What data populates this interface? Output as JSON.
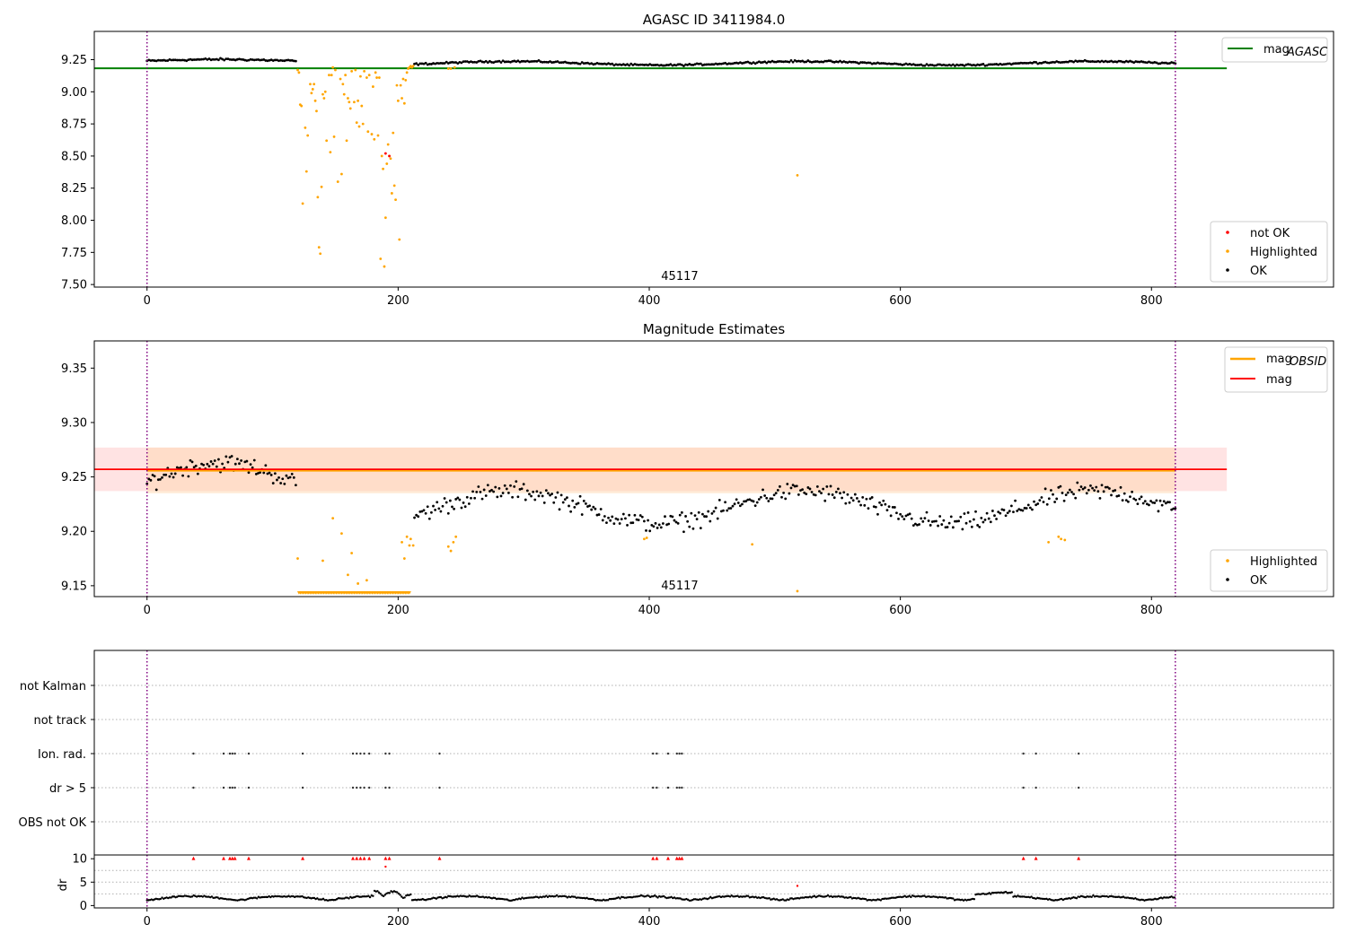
{
  "colors": {
    "ok": "#000000",
    "highlighted": "#FFA500",
    "not_ok": "#FF0000",
    "mag_agasc": "#008000",
    "mag_obsid": "#FFA500",
    "mag": "#FF0000",
    "obs_boundary": "#800080",
    "grid": "#b0b0b0",
    "band_fill": "#ffb0b0",
    "obsid_band_fill": "#ffd8b0"
  },
  "chart_data": [
    {
      "id": "panel-agasc",
      "type": "scatter",
      "title": "AGASC ID 3411984.0",
      "xlim": [
        -42,
        945
      ],
      "ylim": [
        7.48,
        9.47
      ],
      "xticks": [
        0,
        200,
        400,
        600,
        800
      ],
      "yticks": [
        7.5,
        7.75,
        8.0,
        8.25,
        8.5,
        8.75,
        9.0,
        9.25
      ],
      "ytick_labels": [
        "7.50",
        "7.75",
        "8.00",
        "8.25",
        "8.50",
        "8.75",
        "9.00",
        "9.25"
      ],
      "annotation": {
        "text": "45117",
        "x": 410
      },
      "obs_boundaries": [
        0,
        819
      ],
      "mag_agasc": {
        "value": 9.183,
        "xrange": [
          -42,
          860
        ]
      },
      "legend_lines": [
        {
          "label": "mag",
          "subscript": "AGASC",
          "color_key": "mag_agasc"
        }
      ],
      "legend_points": [
        "not OK",
        "Highlighted",
        "OK"
      ],
      "highlighted_points": [
        [
          120,
          9.17
        ],
        [
          121,
          9.15
        ],
        [
          122,
          8.9
        ],
        [
          123,
          8.89
        ],
        [
          124,
          8.13
        ],
        [
          126,
          8.72
        ],
        [
          127,
          8.38
        ],
        [
          128,
          8.66
        ],
        [
          130,
          9.06
        ],
        [
          131,
          8.99
        ],
        [
          132,
          9.02
        ],
        [
          133,
          9.06
        ],
        [
          134,
          8.93
        ],
        [
          135,
          8.85
        ],
        [
          136,
          8.18
        ],
        [
          137,
          7.79
        ],
        [
          138,
          7.74
        ],
        [
          139,
          8.26
        ],
        [
          140,
          8.98
        ],
        [
          141,
          8.95
        ],
        [
          142,
          9.0
        ],
        [
          143,
          8.62
        ],
        [
          145,
          9.13
        ],
        [
          146,
          8.53
        ],
        [
          147,
          9.13
        ],
        [
          148,
          9.19
        ],
        [
          149,
          8.65
        ],
        [
          150,
          9.17
        ],
        [
          152,
          8.3
        ],
        [
          154,
          9.1
        ],
        [
          155,
          8.36
        ],
        [
          156,
          9.06
        ],
        [
          157,
          8.98
        ],
        [
          158,
          9.13
        ],
        [
          159,
          8.62
        ],
        [
          160,
          8.95
        ],
        [
          161,
          8.92
        ],
        [
          162,
          8.87
        ],
        [
          163,
          9.16
        ],
        [
          165,
          8.92
        ],
        [
          166,
          9.17
        ],
        [
          167,
          8.76
        ],
        [
          168,
          8.93
        ],
        [
          169,
          8.73
        ],
        [
          170,
          9.12
        ],
        [
          171,
          8.89
        ],
        [
          172,
          8.75
        ],
        [
          173,
          9.16
        ],
        [
          175,
          9.11
        ],
        [
          176,
          8.69
        ],
        [
          177,
          9.13
        ],
        [
          179,
          8.67
        ],
        [
          180,
          9.04
        ],
        [
          181,
          8.63
        ],
        [
          182,
          9.15
        ],
        [
          183,
          9.11
        ],
        [
          184,
          8.66
        ],
        [
          185,
          9.11
        ],
        [
          186,
          7.7
        ],
        [
          187,
          8.5
        ],
        [
          188,
          8.4
        ],
        [
          189,
          7.64
        ],
        [
          190,
          8.02
        ],
        [
          191,
          8.44
        ],
        [
          192,
          8.59
        ],
        [
          193,
          8.5
        ],
        [
          194,
          8.48
        ],
        [
          195,
          8.21
        ],
        [
          196,
          8.68
        ],
        [
          197,
          8.27
        ],
        [
          198,
          8.16
        ],
        [
          199,
          9.05
        ],
        [
          200,
          8.93
        ],
        [
          201,
          7.85
        ],
        [
          202,
          9.05
        ],
        [
          203,
          8.95
        ],
        [
          204,
          9.1
        ],
        [
          205,
          8.91
        ],
        [
          206,
          9.09
        ],
        [
          207,
          9.15
        ],
        [
          208,
          9.18
        ],
        [
          209,
          9.19
        ],
        [
          210,
          9.2
        ],
        [
          211,
          9.19
        ],
        [
          212,
          9.2
        ],
        [
          240,
          9.18
        ],
        [
          242,
          9.18
        ],
        [
          245,
          9.19
        ],
        [
          518,
          8.35
        ]
      ],
      "notok_points": [
        [
          190,
          8.52
        ],
        [
          193,
          8.5
        ]
      ],
      "ok_segments": [
        {
          "x0": 0,
          "x1": 119,
          "base": 9.24,
          "amp": 0.012,
          "noise": 0.012
        },
        {
          "x0": 213,
          "x1": 819,
          "base": 9.222,
          "amp": 0.015,
          "noise": 0.01
        }
      ]
    },
    {
      "id": "panel-estimates",
      "type": "scatter",
      "title": "Magnitude Estimates",
      "xlim": [
        -42,
        945
      ],
      "ylim": [
        9.14,
        9.375
      ],
      "xticks": [
        0,
        200,
        400,
        600,
        800
      ],
      "yticks": [
        9.15,
        9.2,
        9.25,
        9.3,
        9.35
      ],
      "ytick_labels": [
        "9.15",
        "9.20",
        "9.25",
        "9.30",
        "9.35"
      ],
      "annotation": {
        "text": "45117",
        "x": 410
      },
      "obs_boundaries": [
        0,
        819
      ],
      "mag": {
        "value": 9.257,
        "band": [
          9.237,
          9.277
        ],
        "xrange": [
          -42,
          860
        ]
      },
      "mag_obsid": {
        "value": 9.256,
        "band": [
          9.235,
          9.277
        ],
        "xrange": [
          0,
          819
        ]
      },
      "legend_lines": [
        {
          "label": "mag",
          "subscript": "OBSID",
          "color_key": "mag_obsid"
        },
        {
          "label": "mag",
          "subscript": "",
          "color_key": "mag"
        }
      ],
      "legend_points": [
        "Highlighted",
        "OK"
      ],
      "highlighted_points": [
        [
          120,
          9.175
        ],
        [
          140,
          9.173
        ],
        [
          148,
          9.212
        ],
        [
          155,
          9.198
        ],
        [
          160,
          9.16
        ],
        [
          163,
          9.18
        ],
        [
          168,
          9.152
        ],
        [
          175,
          9.155
        ],
        [
          207,
          9.195
        ],
        [
          203,
          9.19
        ],
        [
          205,
          9.175
        ],
        [
          209,
          9.187
        ],
        [
          210,
          9.193
        ],
        [
          212,
          9.187
        ],
        [
          240,
          9.186
        ],
        [
          242,
          9.182
        ],
        [
          244,
          9.19
        ],
        [
          246,
          9.195
        ],
        [
          396,
          9.193
        ],
        [
          398,
          9.194
        ],
        [
          482,
          9.188
        ],
        [
          718,
          9.19
        ],
        [
          726,
          9.195
        ],
        [
          728,
          9.193
        ],
        [
          731,
          9.192
        ],
        [
          518,
          9.145
        ]
      ],
      "floor_points": {
        "x0": 121,
        "x1": 209,
        "y": 9.144
      },
      "ok_segments": [
        {
          "x0": 0,
          "x1": 119,
          "base": 9.245,
          "amp": 0.018,
          "noise": 0.012
        },
        {
          "x0": 213,
          "x1": 819,
          "base": 9.222,
          "amp": 0.015,
          "noise": 0.012
        }
      ]
    },
    {
      "id": "panel-flags",
      "type": "scatter",
      "title": "",
      "xlim": [
        -42,
        945
      ],
      "obs_boundaries": [
        0,
        819
      ],
      "flag_rows": [
        "not Kalman",
        "not track",
        "Ion. rad.",
        "dr > 5",
        "OBS not OK"
      ],
      "flag_x": [
        37,
        61,
        66,
        68,
        70,
        81,
        124,
        164,
        167,
        170,
        173,
        177,
        190,
        193,
        233,
        403,
        406,
        415,
        422,
        424,
        426,
        698,
        708,
        742
      ],
      "flagged_rows": [
        "Ion. rad.",
        "dr > 5"
      ]
    },
    {
      "id": "panel-dr",
      "type": "scatter",
      "title": "",
      "xlim": [
        -42,
        945
      ],
      "ylim": [
        -0.5,
        10.8
      ],
      "xticks": [
        0,
        200,
        400,
        600,
        800
      ],
      "yticks": [
        0,
        5,
        10
      ],
      "ytick_labels": [
        "0",
        "5",
        "10"
      ],
      "ylabel": "dr",
      "obs_boundaries": [
        0,
        819
      ],
      "dr_cap": 10,
      "capped_x": [
        37,
        61,
        66,
        68,
        70,
        81,
        124,
        164,
        167,
        170,
        173,
        177,
        190,
        193,
        233,
        403,
        406,
        415,
        422,
        424,
        426,
        698,
        708,
        742
      ],
      "extra_red": [
        [
          190,
          8.3
        ],
        [
          518,
          4.2
        ]
      ],
      "baseline_segments": [
        {
          "x0": 0,
          "x1": 819,
          "base": 1.1,
          "amp": 0.9
        }
      ]
    }
  ]
}
